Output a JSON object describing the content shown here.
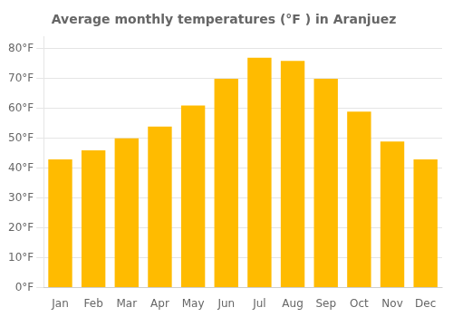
{
  "chart_data": {
    "type": "bar",
    "title": "Average monthly temperatures (°F ) in Aranjuez",
    "categories": [
      "Jan",
      "Feb",
      "Mar",
      "Apr",
      "May",
      "Jun",
      "Jul",
      "Aug",
      "Sep",
      "Oct",
      "Nov",
      "Dec"
    ],
    "values": [
      43,
      46,
      50,
      54,
      61,
      70,
      77,
      76,
      70,
      59,
      49,
      43
    ],
    "color": "#FFBB00",
    "ylim": [
      0,
      84
    ],
    "yticks": [
      {
        "value": 0,
        "label": "0°F"
      },
      {
        "value": 10,
        "label": "10°F"
      },
      {
        "value": 20,
        "label": "20°F"
      },
      {
        "value": 30,
        "label": "30°F"
      },
      {
        "value": 40,
        "label": "40°F"
      },
      {
        "value": 50,
        "label": "50°F"
      },
      {
        "value": 60,
        "label": "60°F"
      },
      {
        "value": 70,
        "label": "70°F"
      },
      {
        "value": 80,
        "label": "80°F"
      }
    ],
    "grid": true
  }
}
